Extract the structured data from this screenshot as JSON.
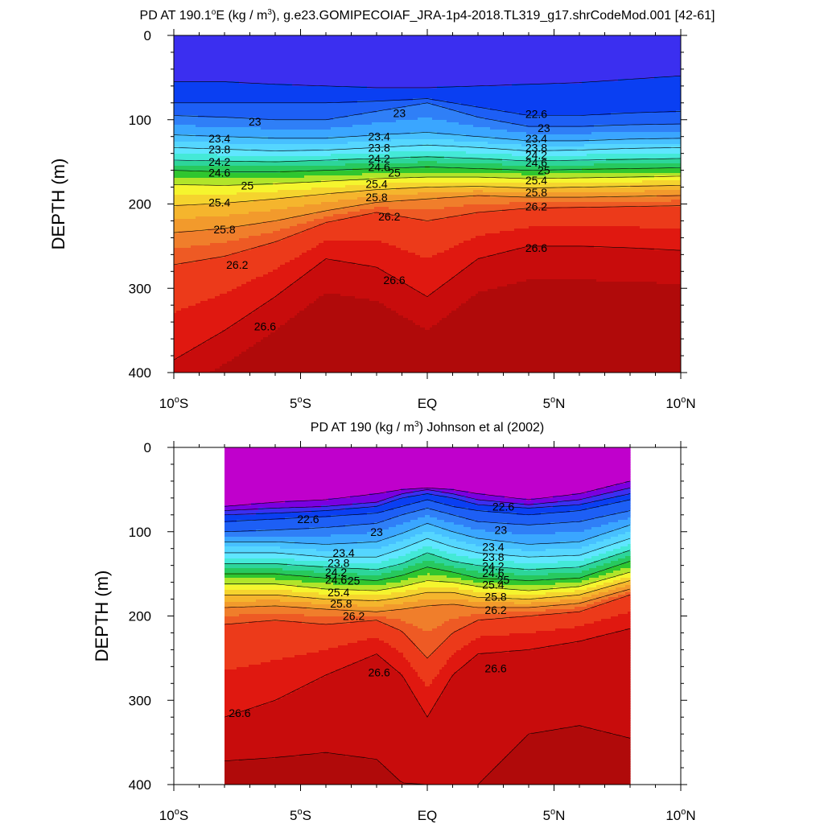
{
  "chart_data": [
    {
      "type": "contour",
      "title_prefix": "PD AT 190.1",
      "title_sup": "o",
      "title_mid": "E (kg / m",
      "title_sup2": "3",
      "title_suffix": "), g.e23.GOMIPECOIAF_JRA-1p4-2018.TL319_g17.shrCodeMod.001 [42-61]",
      "ylabel": "DEPTH (m)",
      "xlim": [
        -10,
        10
      ],
      "ylim": [
        400,
        0
      ],
      "x_range_data": [
        -10,
        10
      ],
      "xticks": [
        {
          "value": -10,
          "label": "10",
          "sup": "o",
          "suffix": "S"
        },
        {
          "value": -5,
          "label": "5",
          "sup": "o",
          "suffix": "S"
        },
        {
          "value": 0,
          "label": "EQ",
          "sup": "",
          "suffix": ""
        },
        {
          "value": 5,
          "label": "5",
          "sup": "o",
          "suffix": "N"
        },
        {
          "value": 10,
          "label": "10",
          "sup": "o",
          "suffix": "N"
        }
      ],
      "yticks": [
        0,
        100,
        200,
        300,
        400
      ],
      "lat_points": [
        -10,
        -8,
        -6,
        -4,
        -2,
        0,
        2,
        4,
        6,
        8,
        10
      ],
      "isopycnals": [
        {
          "level": 22.2,
          "depths": [
            55,
            55,
            58,
            60,
            62,
            62,
            60,
            58,
            56,
            52,
            48
          ]
        },
        {
          "level": 22.6,
          "depths": [
            80,
            80,
            80,
            80,
            78,
            75,
            85,
            95,
            95,
            92,
            90
          ]
        },
        {
          "level": 23.0,
          "depths": [
            95,
            97,
            100,
            100,
            90,
            80,
            97,
            108,
            108,
            106,
            105
          ]
        },
        {
          "level": 23.4,
          "depths": [
            118,
            120,
            122,
            122,
            118,
            115,
            120,
            125,
            125,
            123,
            122
          ]
        },
        {
          "level": 23.8,
          "depths": [
            133,
            135,
            137,
            136,
            133,
            130,
            133,
            137,
            136,
            134,
            133
          ]
        },
        {
          "level": 24.2,
          "depths": [
            148,
            149,
            150,
            148,
            146,
            144,
            146,
            149,
            148,
            147,
            146
          ]
        },
        {
          "level": 24.6,
          "depths": [
            160,
            162,
            162,
            160,
            158,
            156,
            158,
            160,
            159,
            158,
            157
          ]
        },
        {
          "level": 25.0,
          "depths": [
            177,
            178,
            176,
            173,
            170,
            168,
            168,
            170,
            169,
            168,
            167
          ]
        },
        {
          "level": 25.4,
          "depths": [
            202,
            199,
            194,
            188,
            183,
            180,
            179,
            181,
            180,
            179,
            178
          ]
        },
        {
          "level": 25.8,
          "depths": [
            234,
            229,
            220,
            208,
            198,
            194,
            190,
            192,
            192,
            191,
            190
          ]
        },
        {
          "level": 26.2,
          "depths": [
            272,
            262,
            245,
            222,
            210,
            220,
            210,
            205,
            204,
            203,
            202
          ]
        },
        {
          "level": 26.6,
          "depths": [
            385,
            350,
            310,
            265,
            275,
            310,
            265,
            250,
            250,
            252,
            255
          ]
        }
      ],
      "contour_labels": [
        {
          "text": "23",
          "lat": -6.8,
          "depth": 102
        },
        {
          "text": "23.4",
          "lat": -8.2,
          "depth": 122
        },
        {
          "text": "23.8",
          "lat": -8.2,
          "depth": 135
        },
        {
          "text": "24.2",
          "lat": -8.2,
          "depth": 150
        },
        {
          "text": "24.6",
          "lat": -8.2,
          "depth": 163
        },
        {
          "text": "25",
          "lat": -7.1,
          "depth": 178
        },
        {
          "text": "25.4",
          "lat": -8.2,
          "depth": 198
        },
        {
          "text": "25.8",
          "lat": -8.0,
          "depth": 230
        },
        {
          "text": "26.2",
          "lat": -7.5,
          "depth": 272
        },
        {
          "text": "26.6",
          "lat": -6.4,
          "depth": 345
        },
        {
          "text": "23",
          "lat": -1.1,
          "depth": 92
        },
        {
          "text": "23.4",
          "lat": -1.9,
          "depth": 120
        },
        {
          "text": "23.8",
          "lat": -1.9,
          "depth": 133
        },
        {
          "text": "24.2",
          "lat": -1.9,
          "depth": 146
        },
        {
          "text": "24.6",
          "lat": -1.9,
          "depth": 156
        },
        {
          "text": "25",
          "lat": -1.3,
          "depth": 163
        },
        {
          "text": "25.4",
          "lat": -2.0,
          "depth": 176
        },
        {
          "text": "25.8",
          "lat": -2.0,
          "depth": 192
        },
        {
          "text": "26.2",
          "lat": -1.5,
          "depth": 215
        },
        {
          "text": "26.6",
          "lat": -1.3,
          "depth": 290
        },
        {
          "text": "22.6",
          "lat": 4.3,
          "depth": 93
        },
        {
          "text": "23",
          "lat": 4.6,
          "depth": 110
        },
        {
          "text": "23.4",
          "lat": 4.3,
          "depth": 122
        },
        {
          "text": "23.8",
          "lat": 4.3,
          "depth": 133
        },
        {
          "text": "24.2",
          "lat": 4.3,
          "depth": 142
        },
        {
          "text": "24.6",
          "lat": 4.3,
          "depth": 151
        },
        {
          "text": "25",
          "lat": 4.6,
          "depth": 160
        },
        {
          "text": "25.4",
          "lat": 4.3,
          "depth": 172
        },
        {
          "text": "25.8",
          "lat": 4.3,
          "depth": 186
        },
        {
          "text": "26.2",
          "lat": 4.3,
          "depth": 203
        },
        {
          "text": "26.6",
          "lat": 4.3,
          "depth": 252
        }
      ]
    },
    {
      "type": "contour",
      "title_prefix": "PD AT 190 (kg / m",
      "title_sup": "3",
      "title_suffix": ") Johnson et al (2002)",
      "ylabel": "DEPTH (m)",
      "xlim": [
        -10,
        10
      ],
      "ylim": [
        400,
        0
      ],
      "x_range_data": [
        -8,
        8
      ],
      "xticks": [
        {
          "value": -10,
          "label": "10",
          "sup": "o",
          "suffix": "S"
        },
        {
          "value": -5,
          "label": "5",
          "sup": "o",
          "suffix": "S"
        },
        {
          "value": 0,
          "label": "EQ",
          "sup": "",
          "suffix": ""
        },
        {
          "value": 5,
          "label": "5",
          "sup": "o",
          "suffix": "N"
        },
        {
          "value": 10,
          "label": "10",
          "sup": "o",
          "suffix": "N"
        }
      ],
      "yticks": [
        0,
        100,
        200,
        300,
        400
      ],
      "lat_points": [
        -8,
        -6,
        -4,
        -2,
        -1,
        0,
        1,
        2,
        4,
        6,
        8
      ],
      "isopycnals": [
        {
          "level": 21.4,
          "depths": [
            70,
            65,
            62,
            55,
            50,
            48,
            50,
            55,
            62,
            55,
            40
          ]
        },
        {
          "level": 21.8,
          "depths": [
            75,
            72,
            70,
            65,
            55,
            50,
            55,
            62,
            68,
            62,
            48
          ]
        },
        {
          "level": 22.2,
          "depths": [
            80,
            78,
            75,
            70,
            60,
            55,
            60,
            68,
            72,
            68,
            55
          ]
        },
        {
          "level": 22.6,
          "depths": [
            88,
            85,
            82,
            78,
            70,
            62,
            70,
            75,
            80,
            75,
            62
          ]
        },
        {
          "level": 23.0,
          "depths": [
            100,
            98,
            95,
            90,
            80,
            72,
            80,
            88,
            92,
            88,
            75
          ]
        },
        {
          "level": 23.4,
          "depths": [
            112,
            112,
            115,
            112,
            102,
            90,
            100,
            108,
            115,
            112,
            92
          ]
        },
        {
          "level": 23.8,
          "depths": [
            125,
            125,
            130,
            130,
            120,
            108,
            118,
            125,
            130,
            128,
            108
          ]
        },
        {
          "level": 24.2,
          "depths": [
            138,
            138,
            142,
            145,
            138,
            125,
            135,
            140,
            145,
            142,
            122
          ]
        },
        {
          "level": 24.6,
          "depths": [
            150,
            150,
            155,
            158,
            152,
            142,
            148,
            155,
            158,
            155,
            135
          ]
        },
        {
          "level": 25.0,
          "depths": [
            162,
            162,
            168,
            170,
            165,
            158,
            160,
            165,
            170,
            165,
            148
          ]
        },
        {
          "level": 25.4,
          "depths": [
            175,
            175,
            180,
            182,
            178,
            172,
            172,
            178,
            180,
            175,
            158
          ]
        },
        {
          "level": 25.8,
          "depths": [
            190,
            188,
            192,
            195,
            192,
            188,
            186,
            190,
            190,
            185,
            168
          ]
        },
        {
          "level": 26.2,
          "depths": [
            210,
            205,
            210,
            205,
            218,
            250,
            220,
            205,
            200,
            195,
            175
          ]
        },
        {
          "level": 26.6,
          "depths": [
            320,
            300,
            270,
            245,
            270,
            320,
            270,
            245,
            240,
            230,
            215
          ]
        },
        {
          "level": 27.0,
          "depths": [
            372,
            368,
            362,
            370,
            398,
            400,
            400,
            400,
            340,
            330,
            345
          ]
        }
      ],
      "contour_labels": [
        {
          "text": "22.6",
          "lat": -4.7,
          "depth": 85
        },
        {
          "text": "23",
          "lat": -2.0,
          "depth": 100
        },
        {
          "text": "23.4",
          "lat": -3.3,
          "depth": 125
        },
        {
          "text": "23.8",
          "lat": -3.5,
          "depth": 137
        },
        {
          "text": "24.2",
          "lat": -3.6,
          "depth": 148
        },
        {
          "text": "24.6",
          "lat": -3.6,
          "depth": 157
        },
        {
          "text": "25",
          "lat": -2.9,
          "depth": 158
        },
        {
          "text": "25.4",
          "lat": -3.5,
          "depth": 172
        },
        {
          "text": "25.8",
          "lat": -3.4,
          "depth": 185
        },
        {
          "text": "26.2",
          "lat": -2.9,
          "depth": 200
        },
        {
          "text": "26.6",
          "lat": -1.9,
          "depth": 267
        },
        {
          "text": "26.6",
          "lat": -7.4,
          "depth": 315
        },
        {
          "text": "22.6",
          "lat": 3.0,
          "depth": 70
        },
        {
          "text": "23",
          "lat": 2.9,
          "depth": 98
        },
        {
          "text": "23.4",
          "lat": 2.6,
          "depth": 118
        },
        {
          "text": "23.8",
          "lat": 2.6,
          "depth": 130
        },
        {
          "text": "24.2",
          "lat": 2.6,
          "depth": 141
        },
        {
          "text": "24.6",
          "lat": 2.6,
          "depth": 149
        },
        {
          "text": "25",
          "lat": 3.0,
          "depth": 157
        },
        {
          "text": "25.4",
          "lat": 2.6,
          "depth": 163
        },
        {
          "text": "25.8",
          "lat": 2.7,
          "depth": 177
        },
        {
          "text": "26.2",
          "lat": 2.7,
          "depth": 193
        },
        {
          "text": "26.6",
          "lat": 2.7,
          "depth": 262
        }
      ]
    }
  ],
  "colors": {
    "levels": [
      21.4,
      21.8,
      22.2,
      22.6,
      23.0,
      23.2,
      23.4,
      23.6,
      23.8,
      24.0,
      24.2,
      24.4,
      24.6,
      24.8,
      25.0,
      25.2,
      25.4,
      25.6,
      25.8,
      26.0,
      26.2,
      26.4,
      26.6,
      27.0
    ],
    "ramp": [
      "#c000cc",
      "#7a00e0",
      "#3b2ff0",
      "#0a3ff2",
      "#1d5ff5",
      "#2f7ff7",
      "#3aa6ff",
      "#47c0ff",
      "#55d6ff",
      "#5fe6ff",
      "#44e9d7",
      "#2dd59a",
      "#27c95e",
      "#2fc62f",
      "#b1e52a",
      "#f5f52e",
      "#f5d42e",
      "#f5b52d",
      "#f29a2c",
      "#f07e2b",
      "#ee5a24",
      "#ec3a1a",
      "#e01810",
      "#c80c0c",
      "#b00a0a"
    ]
  }
}
